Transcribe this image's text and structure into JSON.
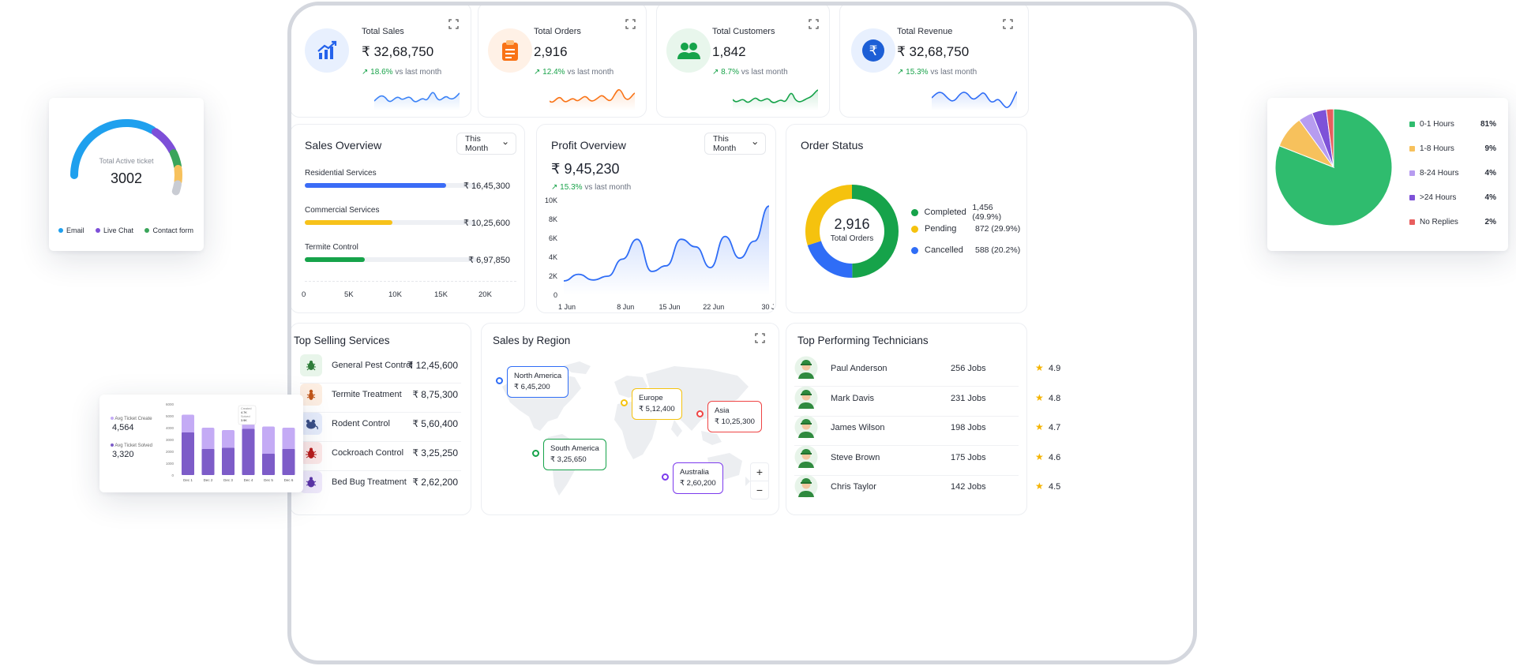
{
  "kpis": [
    {
      "title": "Total Sales",
      "value": "₹ 32,68,750",
      "pct": "18.6%",
      "suffix": "vs last month",
      "icon": "chart-up-icon",
      "color": "#3b82f6"
    },
    {
      "title": "Total Orders",
      "value": "2,916",
      "pct": "12.4%",
      "suffix": "vs last month",
      "icon": "clipboard-icon",
      "color": "#f97316"
    },
    {
      "title": "Total Customers",
      "value": "1,842",
      "pct": "8.7%",
      "suffix": "vs last month",
      "icon": "users-icon",
      "color": "#16a34a"
    },
    {
      "title": "Total Revenue",
      "value": "₹ 32,68,750",
      "pct": "15.3%",
      "suffix": "vs last month",
      "icon": "rupee-icon",
      "color": "#2563eb"
    }
  ],
  "sales_overview": {
    "title": "Sales Overview",
    "period": "This Month",
    "services": [
      {
        "label": "Residential Services",
        "value": "₹ 16,45,300",
        "fraction": 0.82,
        "color": "#3b6cf6"
      },
      {
        "label": "Commercial Services",
        "value": "₹ 10,25,600",
        "fraction": 0.51,
        "color": "#f7c21a"
      },
      {
        "label": "Termite Control",
        "value": "₹ 6,97,850",
        "fraction": 0.35,
        "color": "#16a34a"
      }
    ],
    "axis": [
      "0",
      "5K",
      "10K",
      "15K",
      "20K"
    ]
  },
  "profit_overview": {
    "title": "Profit Overview",
    "period": "This Month",
    "value": "₹ 9,45,230",
    "pct": "15.3%",
    "suffix": "vs last month"
  },
  "chart_data": {
    "type": "area",
    "x": [
      "1 Jun",
      "2 Jun",
      "4 Jun",
      "6 Jun",
      "8 Jun",
      "10 Jun",
      "12 Jun",
      "15 Jun",
      "17 Jun",
      "19 Jun",
      "22 Jun",
      "24 Jun",
      "26 Jun",
      "28 Jun",
      "30 Jun"
    ],
    "values": [
      1500,
      2200,
      1600,
      2000,
      3800,
      5900,
      2500,
      3100,
      5900,
      5100,
      2900,
      6200,
      3900,
      5700,
      9400
    ],
    "xticks": [
      "1 Jun",
      "8 Jun",
      "15 Jun",
      "22 Jun",
      "30 Jun"
    ],
    "yticks": [
      "0",
      "2K",
      "4K",
      "6K",
      "8K",
      "10K"
    ],
    "ylim": [
      0,
      10000
    ],
    "color": "#2f6df6"
  },
  "order_status": {
    "title": "Order Status",
    "total": "2,916",
    "total_label": "Total Orders",
    "items": [
      {
        "label": "Completed",
        "value": "1,456 (49.9%)",
        "share": 49.9,
        "color": "#16a34a"
      },
      {
        "label": "Pending",
        "value": "872 (29.9%)",
        "share": 29.9,
        "color": "#f5c20e"
      },
      {
        "label": "Cancelled",
        "value": "588 (20.2%)",
        "share": 20.2,
        "color": "#2f6df6"
      }
    ]
  },
  "top_selling": {
    "title": "Top Selling Services",
    "items": [
      {
        "name": "General Pest Control",
        "value": "₹ 12,45,600",
        "icon": "bug-icon",
        "bg": "#e8f5ea",
        "fg": "#2f7d3a"
      },
      {
        "name": "Termite Treatment",
        "value": "₹ 8,75,300",
        "icon": "termite-icon",
        "bg": "#fdeee2",
        "fg": "#c2571a"
      },
      {
        "name": "Rodent Control",
        "value": "₹ 5,60,400",
        "icon": "rodent-icon",
        "bg": "#e6ecfb",
        "fg": "#3a4f86"
      },
      {
        "name": "Cockroach Control",
        "value": "₹ 3,25,250",
        "icon": "cockroach-icon",
        "bg": "#fde8e8",
        "fg": "#b91c1c"
      },
      {
        "name": "Bed Bug Treatment",
        "value": "₹ 2,62,200",
        "icon": "bedbug-icon",
        "bg": "#efe9fb",
        "fg": "#5b34a8"
      }
    ]
  },
  "region": {
    "title": "Sales by Region",
    "pins": [
      {
        "name": "North America",
        "value": "₹ 6,45,200",
        "color": "#2f6df6"
      },
      {
        "name": "Europe",
        "value": "₹ 5,12,400",
        "color": "#f5c20e"
      },
      {
        "name": "Asia",
        "value": "₹ 10,25,300",
        "color": "#ef4444"
      },
      {
        "name": "South America",
        "value": "₹ 3,25,650",
        "color": "#16a34a"
      },
      {
        "name": "Australia",
        "value": "₹ 2,60,200",
        "color": "#7c3aed"
      }
    ],
    "zoom_in": "+",
    "zoom_out": "−"
  },
  "technicians": {
    "title": "Top Performing Technicians",
    "items": [
      {
        "name": "Paul Anderson",
        "jobs": "256 Jobs",
        "rating": "4.9"
      },
      {
        "name": "Mark Davis",
        "jobs": "231 Jobs",
        "rating": "4.8"
      },
      {
        "name": "James Wilson",
        "jobs": "198 Jobs",
        "rating": "4.7"
      },
      {
        "name": "Steve Brown",
        "jobs": "175 Jobs",
        "rating": "4.6"
      },
      {
        "name": "Chris Taylor",
        "jobs": "142 Jobs",
        "rating": "4.5"
      }
    ],
    "star": "★"
  },
  "gauge_card": {
    "label": "Total Active ticket",
    "value": "3002",
    "legend": [
      {
        "label": "Email",
        "color": "#1fa0ee"
      },
      {
        "label": "Live Chat",
        "color": "#7d4fd8"
      },
      {
        "label": "Contact form",
        "color": "#3aa55a"
      }
    ]
  },
  "pie_card": {
    "items": [
      {
        "label": "0-1 Hours",
        "value": "81%",
        "share": 81,
        "color": "#2fbc6e"
      },
      {
        "label": "1-8 Hours",
        "value": "9%",
        "share": 9,
        "color": "#f7c15c"
      },
      {
        "label": "8-24 Hours",
        "value": "4%",
        "share": 4,
        "color": "#b79cf0"
      },
      {
        "label": ">24 Hours",
        "value": "4%",
        "share": 4,
        "color": "#7e52d8"
      },
      {
        "label": "No Replies",
        "value": "2%",
        "share": 2,
        "color": "#e85e5e"
      }
    ]
  },
  "bar_card": {
    "stats": [
      {
        "label": "Avg Ticket Create",
        "value": "4,564"
      },
      {
        "label": "Avg Ticket Solved",
        "value": "3,320"
      }
    ],
    "yticks": [
      "6000",
      "5000",
      "4000",
      "3000",
      "2000",
      "1000",
      "0"
    ],
    "days": [
      "Dec 1",
      "Dec 2",
      "Dec 3",
      "Dec 4",
      "Dec 5",
      "Dec 6",
      "Dec 7"
    ],
    "created": [
      5100,
      4000,
      3800,
      4700,
      4100,
      4000,
      4500
    ],
    "solved": [
      3600,
      2200,
      2300,
      3900,
      1800,
      2200,
      2100
    ],
    "tooltip": {
      "title": "Dec 4",
      "line1": "Created",
      "val1": "4.7K",
      "line2": "Solved",
      "val2": "3.9K"
    },
    "colors": {
      "created": "#c4abf5",
      "solved": "#7d5cc8"
    }
  }
}
